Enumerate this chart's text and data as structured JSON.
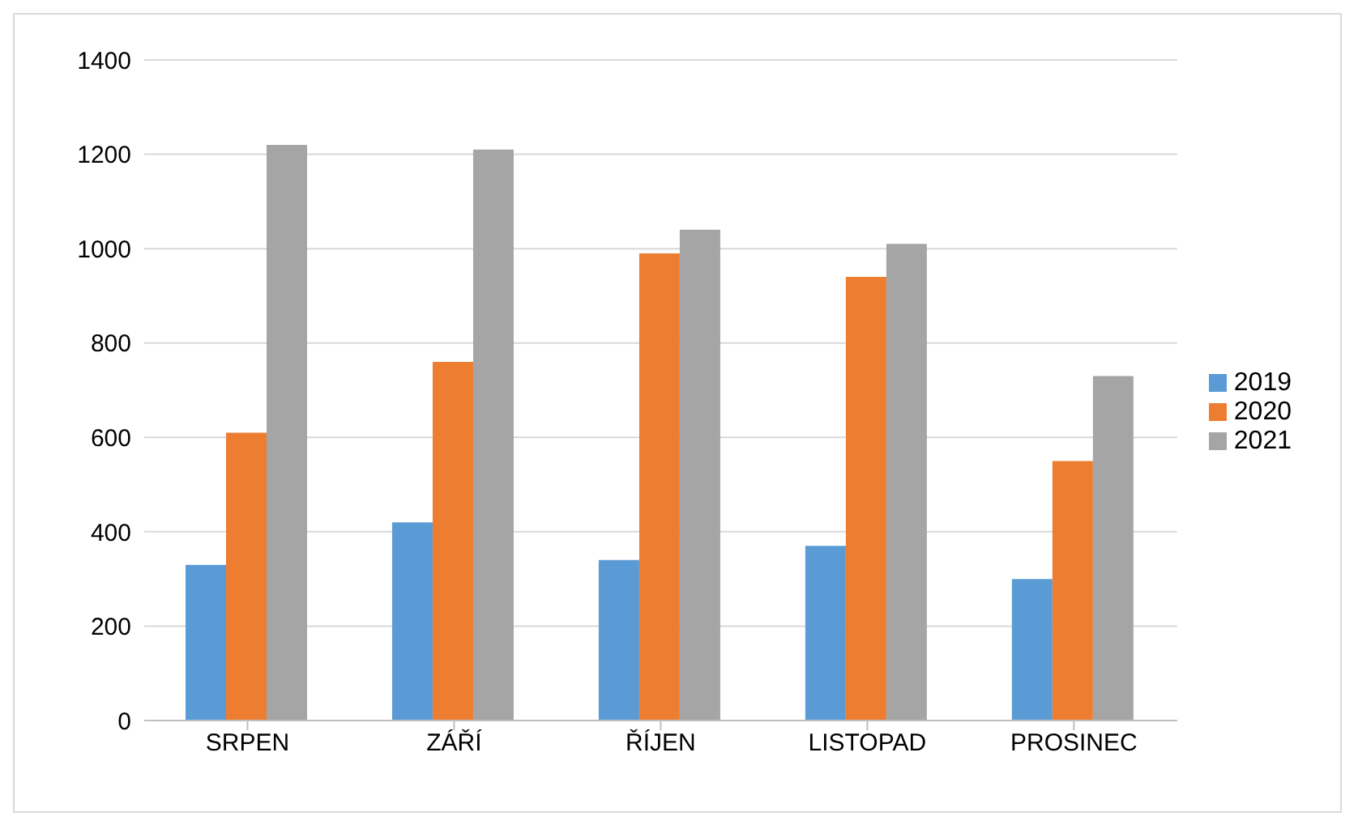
{
  "chart_data": {
    "type": "bar",
    "categories": [
      "SRPEN",
      "ZÁŘÍ",
      "ŘÍJEN",
      "LISTOPAD",
      "PROSINEC"
    ],
    "series": [
      {
        "name": "2019",
        "color": "#5b9bd5",
        "values": [
          330,
          420,
          340,
          370,
          300
        ]
      },
      {
        "name": "2020",
        "color": "#ed7d31",
        "values": [
          610,
          760,
          990,
          940,
          550
        ]
      },
      {
        "name": "2021",
        "color": "#a5a5a5",
        "values": [
          1220,
          1210,
          1040,
          1010,
          730
        ]
      }
    ],
    "ylim": [
      0,
      1400
    ],
    "yticks": [
      0,
      200,
      400,
      600,
      800,
      1000,
      1200,
      1400
    ],
    "grid": "y",
    "legend": "right"
  }
}
